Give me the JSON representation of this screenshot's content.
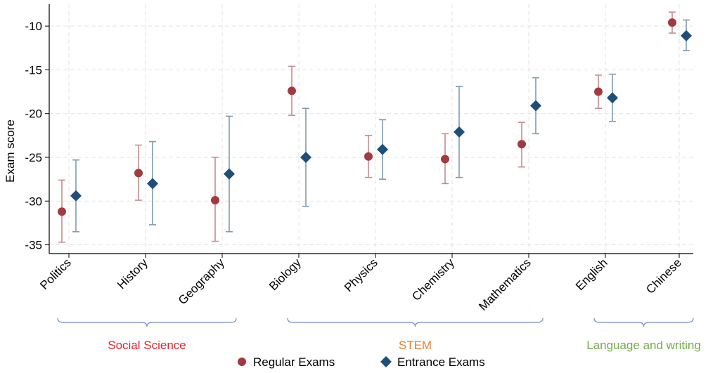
{
  "chart_data": {
    "type": "scatter",
    "ylabel": "Exam score",
    "xlabel": "",
    "ylim": [
      -36,
      -7.5
    ],
    "yticks": [
      -10,
      -15,
      -20,
      -25,
      -30,
      -35
    ],
    "grid": true,
    "legend_position": "bottom-center",
    "categories": [
      "Politics",
      "History",
      "Geography",
      "Biology",
      "Physics",
      "Chemistry",
      "Mathematics",
      "English",
      "Chinese"
    ],
    "series": [
      {
        "name": "Regular Exams",
        "color": "#A23A3F",
        "bar_color": "#C88B8E",
        "marker": "circle",
        "values": [
          -31.2,
          -26.8,
          -29.9,
          -17.4,
          -24.9,
          -25.2,
          -23.5,
          -17.5,
          -9.6
        ],
        "ci_low": [
          -34.7,
          -29.9,
          -34.6,
          -20.2,
          -27.3,
          -28.0,
          -26.1,
          -19.4,
          -10.8
        ],
        "ci_high": [
          -27.6,
          -23.6,
          -25.0,
          -14.6,
          -22.5,
          -22.3,
          -21.0,
          -15.6,
          -8.4
        ]
      },
      {
        "name": "Entrance Exams",
        "color": "#1F4E79",
        "bar_color": "#7F9BB0",
        "marker": "diamond",
        "values": [
          -29.4,
          -28.0,
          -26.9,
          -25.0,
          -24.1,
          -22.1,
          -19.1,
          -18.2,
          -11.1
        ],
        "ci_low": [
          -33.5,
          -32.7,
          -33.5,
          -30.6,
          -27.5,
          -27.3,
          -22.3,
          -20.9,
          -12.8
        ],
        "ci_high": [
          -25.3,
          -23.2,
          -20.3,
          -19.4,
          -20.7,
          -16.9,
          -15.9,
          -15.5,
          -9.3
        ]
      }
    ],
    "groups": [
      {
        "label": "Social Science",
        "color": "#E8232A",
        "from": "Politics",
        "to": "Geography"
      },
      {
        "label": "STEM",
        "color": "#ED7D31",
        "from": "Biology",
        "to": "Mathematics"
      },
      {
        "label": "Language and writing",
        "color": "#70AD47",
        "from": "English",
        "to": "Chinese"
      }
    ]
  }
}
